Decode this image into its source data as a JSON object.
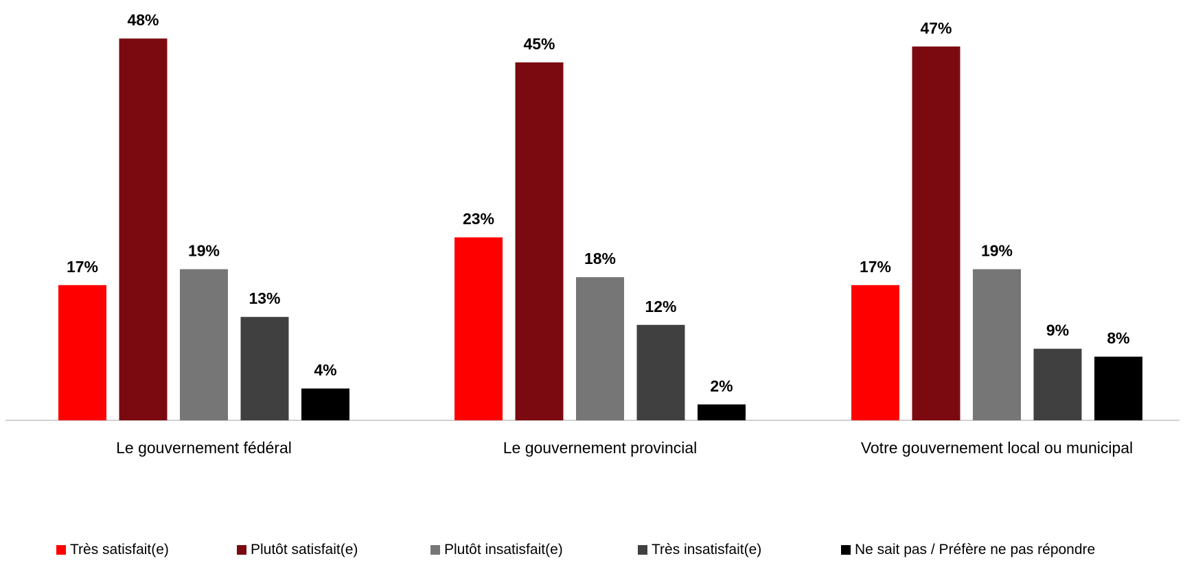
{
  "chart_data": {
    "type": "bar",
    "categories": [
      "Le gouvernement fédéral",
      "Le gouvernement provincial",
      "Votre gouvernement local ou municipal"
    ],
    "series": [
      {
        "name": "Très satisfait(e)",
        "color": "#ff0000",
        "values": [
          17,
          23,
          17
        ],
        "labels": [
          "17%",
          "23%",
          "17%"
        ]
      },
      {
        "name": "Plutôt satisfait(e)",
        "color": "#7b0a10",
        "values": [
          48,
          45,
          47
        ],
        "labels": [
          "48%",
          "45%",
          "47%"
        ]
      },
      {
        "name": "Plutôt insatisfait(e)",
        "color": "#767676",
        "values": [
          19,
          18,
          19
        ],
        "labels": [
          "19%",
          "18%",
          "19%"
        ]
      },
      {
        "name": "Très insatisfait(e)",
        "color": "#404040",
        "values": [
          13,
          12,
          9
        ],
        "labels": [
          "13%",
          "12%",
          "9%"
        ]
      },
      {
        "name": "Ne sait pas / Préfère ne pas répondre",
        "color": "#000000",
        "values": [
          4,
          2,
          8
        ],
        "labels": [
          "4%",
          "2%",
          "8%"
        ]
      }
    ],
    "ylim": [
      0,
      52
    ],
    "grid": false,
    "legend_position": "bottom"
  }
}
